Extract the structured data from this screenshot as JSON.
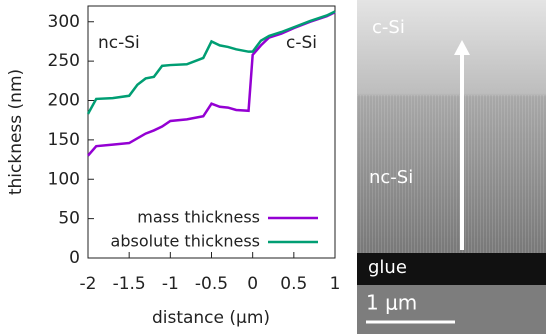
{
  "chart_data": {
    "type": "line",
    "xlabel": "distance (μm)",
    "ylabel": "thickness (nm)",
    "annotations": [
      "nc-Si",
      "c-Si"
    ],
    "x": [
      -2,
      -1.9,
      -1.7,
      -1.5,
      -1.4,
      -1.3,
      -1.2,
      -1.1,
      -1.0,
      -0.8,
      -0.6,
      -0.5,
      -0.4,
      -0.3,
      -0.2,
      -0.05,
      0,
      0.1,
      0.2,
      0.35,
      0.5,
      0.7,
      0.9,
      1.0
    ],
    "series": [
      {
        "name": "mass thickness",
        "color": "#9400d3",
        "values": [
          130,
          142,
          144,
          146,
          152,
          158,
          162,
          167,
          174,
          176,
          180,
          196,
          192,
          191,
          188,
          187,
          258,
          270,
          280,
          285,
          292,
          300,
          307,
          312
        ]
      },
      {
        "name": "absolute thickness",
        "color": "#009e73",
        "values": [
          183,
          202,
          203,
          206,
          220,
          228,
          230,
          244,
          245,
          246,
          254,
          275,
          270,
          268,
          265,
          262,
          262,
          276,
          282,
          287,
          293,
          301,
          308,
          313
        ]
      }
    ],
    "xlim": [
      -2,
      1
    ],
    "xticks": [
      -2,
      -1.5,
      -1,
      -0.5,
      0,
      0.5,
      1
    ],
    "ylim": [
      0,
      320
    ],
    "yticks": [
      0,
      50,
      100,
      150,
      200,
      250,
      300
    ],
    "legend": "lower right"
  },
  "micrograph": {
    "labels": [
      "c-Si",
      "nc-Si",
      "glue"
    ],
    "scale_bar": "1 μm"
  }
}
